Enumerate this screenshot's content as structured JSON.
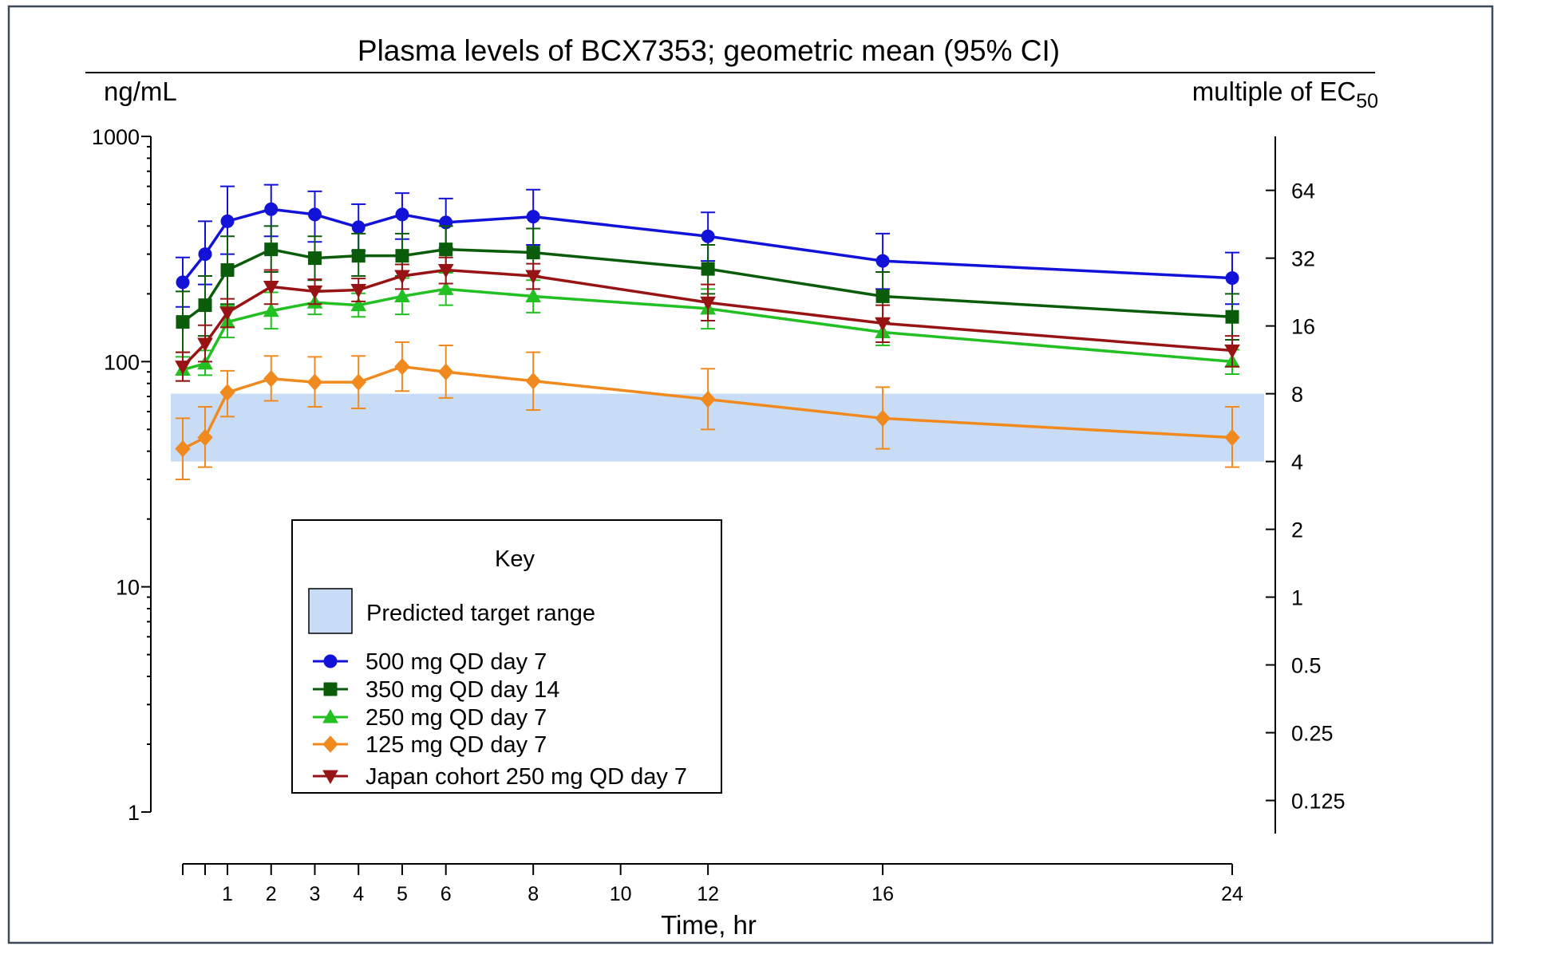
{
  "chart_data": {
    "type": "line",
    "title": "Plasma levels of BCX7353; geometric mean (95% CI)",
    "ylabel_left": "ng/mL",
    "ylabel_right_main": "multiple of EC",
    "ylabel_right_sub": "50",
    "xlabel": "Time, hr",
    "yscale": "log",
    "ylim": [
      1,
      1000
    ],
    "xlim": [
      0,
      24
    ],
    "y_left_ticks": [
      "1000",
      "100",
      "10",
      "1"
    ],
    "y_left_tick_values": [
      1000,
      100,
      10,
      1
    ],
    "y_right_ticks": [
      "64",
      "32",
      "16",
      "8",
      "4",
      "2",
      "1",
      "0.5",
      "0.25",
      "0.125"
    ],
    "y_right_tick_values": [
      64,
      32,
      16,
      8,
      4,
      2,
      1,
      0.5,
      0.25,
      0.125
    ],
    "x_ticks": [
      "1",
      "2",
      "3",
      "4",
      "5",
      "6",
      "8",
      "10",
      "12",
      "16",
      "24"
    ],
    "x_tick_values": [
      1,
      2,
      3,
      4,
      5,
      6,
      8,
      10,
      12,
      16,
      24
    ],
    "x_minor_ticks": [
      0,
      0.5
    ],
    "band": {
      "label": "Predicted target range",
      "low": 36,
      "high": 72,
      "color": "#c9dcf5"
    },
    "legend": {
      "title": "Key",
      "placement": "lower-left"
    },
    "x": [
      0,
      0.5,
      1,
      2,
      3,
      4,
      5,
      6,
      8,
      12,
      16,
      24
    ],
    "series": [
      {
        "name": "500 mg QD day 7",
        "color": "#1212d8",
        "marker": "circle",
        "values": [
          225,
          300,
          420,
          475,
          450,
          395,
          450,
          415,
          440,
          360,
          280,
          235
        ],
        "lower": [
          175,
          220,
          300,
          360,
          340,
          310,
          350,
          320,
          330,
          280,
          210,
          180
        ],
        "upper": [
          290,
          420,
          600,
          610,
          570,
          500,
          560,
          530,
          580,
          460,
          370,
          305
        ]
      },
      {
        "name": "350 mg QD day 14",
        "color": "#0a5c0a",
        "marker": "square",
        "values": [
          150,
          178,
          255,
          315,
          288,
          295,
          295,
          315,
          305,
          258,
          195,
          158
        ],
        "lower": [
          110,
          130,
          180,
          250,
          230,
          240,
          240,
          250,
          240,
          200,
          150,
          125
        ],
        "upper": [
          205,
          240,
          360,
          400,
          360,
          370,
          370,
          400,
          390,
          330,
          250,
          200
        ]
      },
      {
        "name": "250 mg QD day 7",
        "color": "#22c022",
        "marker": "triangle-up",
        "values": [
          92,
          98,
          150,
          168,
          183,
          178,
          195,
          210,
          195,
          172,
          135,
          100
        ],
        "lower": [
          82,
          87,
          128,
          140,
          162,
          158,
          162,
          178,
          165,
          140,
          118,
          88
        ],
        "upper": [
          105,
          112,
          177,
          203,
          207,
          201,
          235,
          248,
          230,
          210,
          155,
          113
        ]
      },
      {
        "name": "125 mg QD day 7",
        "color": "#f08a1e",
        "marker": "diamond",
        "values": [
          41,
          46,
          73,
          84,
          81,
          81,
          95,
          90,
          82,
          68,
          56,
          46
        ],
        "lower": [
          30,
          34,
          57,
          67,
          63,
          62,
          74,
          69,
          61,
          50,
          41,
          34
        ],
        "upper": [
          56,
          63,
          91,
          106,
          105,
          106,
          122,
          118,
          110,
          93,
          77,
          63
        ]
      },
      {
        "name": "Japan cohort 250 mg QD day 7",
        "color": "#981414",
        "marker": "triangle-down",
        "values": [
          95,
          120,
          165,
          215,
          205,
          208,
          240,
          255,
          240,
          183,
          148,
          112
        ],
        "lower": [
          82,
          100,
          142,
          180,
          180,
          185,
          210,
          222,
          210,
          152,
          122,
          95
        ],
        "upper": [
          110,
          145,
          190,
          255,
          232,
          234,
          270,
          290,
          272,
          220,
          178,
          130
        ]
      }
    ]
  }
}
